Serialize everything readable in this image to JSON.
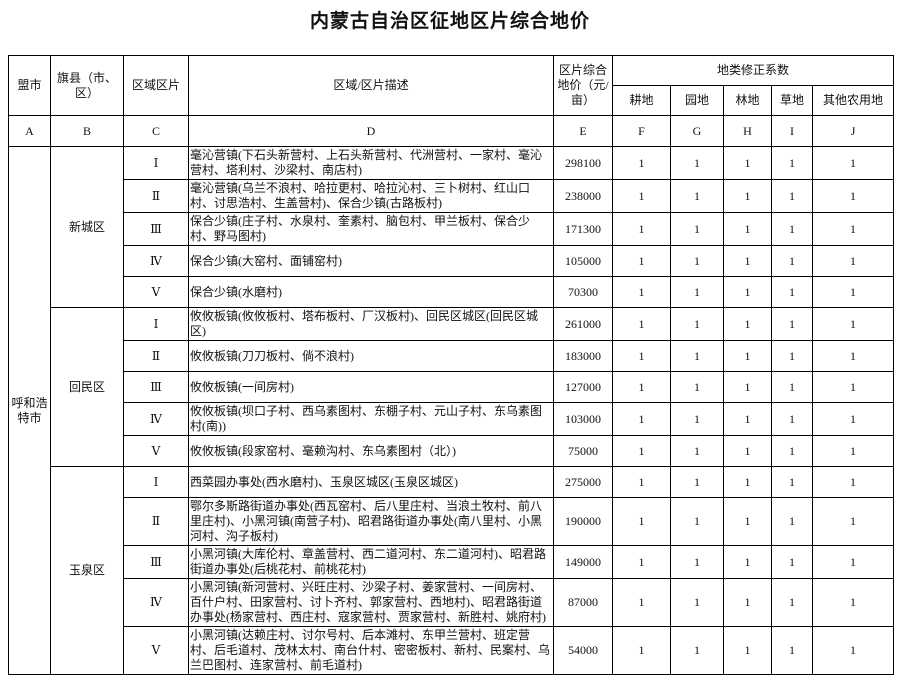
{
  "title": "内蒙古自治区征地区片综合地价",
  "header": {
    "columns": [
      "盟市",
      "旗县（市、区）",
      "区域区片",
      "区域/区片描述",
      "区片综合地价（元/亩）"
    ],
    "group": "地类修正系数",
    "subcolumns": [
      "耕地",
      "园地",
      "林地",
      "草地",
      "其他农用地"
    ],
    "letters": [
      "A",
      "B",
      "C",
      "D",
      "E",
      "F",
      "G",
      "H",
      "I",
      "J"
    ]
  },
  "leagues": [
    {
      "name": "呼和浩特市",
      "districts": [
        {
          "name": "新城区",
          "zones": [
            {
              "zone": "Ⅰ",
              "description": "毫沁营镇(下石头新营村、上石头新营村、代洲营村、一家村、毫沁营村、塔利村、沙梁村、南店村)",
              "price": 298100,
              "coefficients": [
                1,
                1,
                1,
                1,
                1
              ]
            },
            {
              "zone": "Ⅱ",
              "description": "毫沁营镇(乌兰不浪村、哈拉更村、哈拉沁村、三卜树村、红山口村、讨思浩村、生盖营村)、保合少镇(古路板村)",
              "price": 238000,
              "coefficients": [
                1,
                1,
                1,
                1,
                1
              ]
            },
            {
              "zone": "Ⅲ",
              "description": "保合少镇(庄子村、水泉村、奎素村、脑包村、甲兰板村、保合少村、野马图村)",
              "price": 171300,
              "coefficients": [
                1,
                1,
                1,
                1,
                1
              ]
            },
            {
              "zone": "Ⅳ",
              "description": "保合少镇(大窑村、面铺窑村)",
              "price": 105000,
              "coefficients": [
                1,
                1,
                1,
                1,
                1
              ]
            },
            {
              "zone": "Ⅴ",
              "description": "保合少镇(水磨村)",
              "price": 70300,
              "coefficients": [
                1,
                1,
                1,
                1,
                1
              ]
            }
          ]
        },
        {
          "name": "回民区",
          "zones": [
            {
              "zone": "Ⅰ",
              "description": "攸攸板镇(攸攸板村、塔布板村、厂汉板村)、回民区城区(回民区城区)",
              "price": 261000,
              "coefficients": [
                1,
                1,
                1,
                1,
                1
              ]
            },
            {
              "zone": "Ⅱ",
              "description": "攸攸板镇(刀刀板村、倘不浪村)",
              "price": 183000,
              "coefficients": [
                1,
                1,
                1,
                1,
                1
              ]
            },
            {
              "zone": "Ⅲ",
              "description": "攸攸板镇(一间房村)",
              "price": 127000,
              "coefficients": [
                1,
                1,
                1,
                1,
                1
              ]
            },
            {
              "zone": "Ⅳ",
              "description": "攸攸板镇(坝口子村、西乌素图村、东棚子村、元山子村、东乌素图村(南))",
              "price": 103000,
              "coefficients": [
                1,
                1,
                1,
                1,
                1
              ]
            },
            {
              "zone": "Ⅴ",
              "description": "攸攸板镇(段家窑村、毫赖沟村、东乌素图村（北）)",
              "price": 75000,
              "coefficients": [
                1,
                1,
                1,
                1,
                1
              ]
            }
          ]
        },
        {
          "name": "玉泉区",
          "zones": [
            {
              "zone": "Ⅰ",
              "description": "西菜园办事处(西水磨村)、玉泉区城区(玉泉区城区)",
              "price": 275000,
              "coefficients": [
                1,
                1,
                1,
                1,
                1
              ]
            },
            {
              "zone": "Ⅱ",
              "description": "鄂尔多斯路街道办事处(西瓦窑村、后八里庄村、当浪土牧村、前八里庄村)、小黑河镇(南营子村)、昭君路街道办事处(南八里村、小黑河村、沟子板村)",
              "price": 190000,
              "coefficients": [
                1,
                1,
                1,
                1,
                1
              ]
            },
            {
              "zone": "Ⅲ",
              "description": "小黑河镇(大库伦村、章盖营村、西二道河村、东二道河村)、昭君路街道办事处(后桃花村、前桃花村)",
              "price": 149000,
              "coefficients": [
                1,
                1,
                1,
                1,
                1
              ]
            },
            {
              "zone": "Ⅳ",
              "description": "小黑河镇(新河营村、兴旺庄村、沙梁子村、姜家营村、一间房村、百什户村、田家营村、讨卜齐村、郭家营村、西地村)、昭君路街道办事处(杨家营村、西庄村、寇家营村、贾家营村、新胜村、姚府村)",
              "price": 87000,
              "coefficients": [
                1,
                1,
                1,
                1,
                1
              ]
            },
            {
              "zone": "Ⅴ",
              "description": "小黑河镇(达赖庄村、讨尔号村、后本滩村、东甲兰营村、班定营村、后毛道村、茂林太村、南台什村、密密板村、新村、民案村、乌兰巴图村、连家营村、前毛道村)",
              "price": 54000,
              "coefficients": [
                1,
                1,
                1,
                1,
                1
              ]
            }
          ]
        }
      ]
    }
  ]
}
